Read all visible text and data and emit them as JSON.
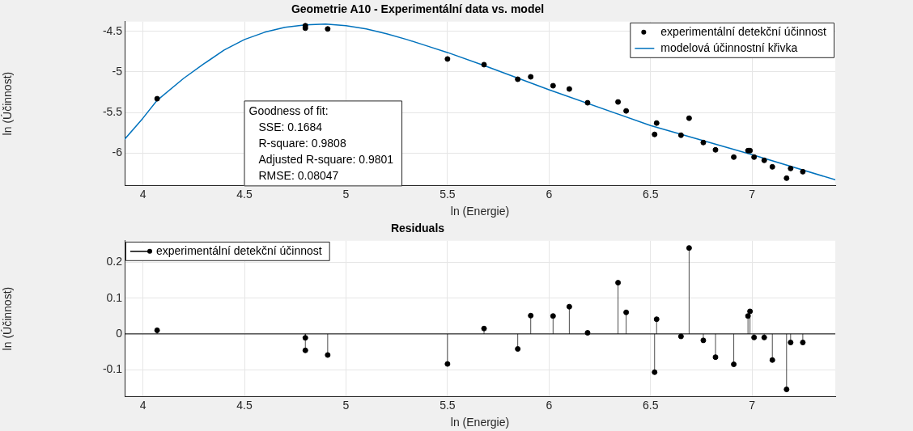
{
  "chart_data": [
    {
      "type": "scatter",
      "title": "Geometrie A10 - Experimentální data vs. model",
      "xlabel": "ln (Energie)",
      "ylabel": "ln (Účinnost)",
      "xlim": [
        3.91,
        7.41
      ],
      "xticks": [
        4,
        4.5,
        5,
        5.5,
        6,
        6.5,
        7
      ],
      "ylim": [
        -6.4,
        -4.38
      ],
      "yticks": [
        -6,
        -5.5,
        -5,
        -4.5
      ],
      "grid": true,
      "legend": "top right",
      "series": [
        {
          "name": "experimentální detekční účinnost",
          "marker": "circle",
          "color": "#000000",
          "x": [
            4.07,
            4.8,
            4.8,
            4.91,
            5.5,
            5.68,
            5.846,
            5.91,
            6.02,
            6.1,
            6.19,
            6.34,
            6.38,
            6.52,
            6.53,
            6.65,
            6.69,
            6.76,
            6.82,
            6.91,
            6.98,
            6.99,
            7.01,
            7.06,
            7.1,
            7.17,
            7.19,
            7.25
          ],
          "values": [
            -5.33,
            -4.43,
            -4.46,
            -4.47,
            -4.84,
            -4.91,
            -5.09,
            -5.06,
            -5.17,
            -5.21,
            -5.38,
            -5.37,
            -5.48,
            -5.77,
            -5.63,
            -5.78,
            -5.57,
            -5.87,
            -5.96,
            -6.05,
            -5.97,
            -5.97,
            -6.05,
            -6.09,
            -6.17,
            -6.31,
            -6.19,
            -6.23
          ]
        },
        {
          "name": "modelová účinnostní křivka",
          "type": "line",
          "marker": "none",
          "color": "#0072bd",
          "x": [
            3.91,
            4.0,
            4.07,
            4.2,
            4.3,
            4.4,
            4.5,
            4.6,
            4.7,
            4.8,
            4.9,
            5.0,
            5.1,
            5.2,
            5.3,
            5.4,
            5.5,
            5.68,
            6.0,
            6.5,
            7.0,
            7.41
          ],
          "values": [
            -5.83,
            -5.57,
            -5.35,
            -5.08,
            -4.9,
            -4.73,
            -4.6,
            -4.51,
            -4.45,
            -4.42,
            -4.41,
            -4.43,
            -4.47,
            -4.53,
            -4.6,
            -4.68,
            -4.76,
            -4.92,
            -5.22,
            -5.66,
            -6.02,
            -6.33
          ]
        }
      ],
      "annotations": [
        "Goodness of fit:",
        "SSE: 0.1684",
        "R-square: 0.9808",
        "Adjusted R-square: 0.9801",
        "RMSE: 0.08047"
      ]
    },
    {
      "type": "lollipop",
      "title": "Residuals",
      "xlabel": "ln (Energie)",
      "ylabel": "ln (Účinnost)",
      "xlim": [
        3.91,
        7.41
      ],
      "xticks": [
        4,
        4.5,
        5,
        5.5,
        6,
        6.5,
        7
      ],
      "ylim": [
        -0.175,
        0.26
      ],
      "yticks": [
        -0.1,
        0,
        0.1,
        0.2
      ],
      "grid": true,
      "legend": "top left",
      "marker": "circle",
      "series": [
        {
          "name": "experimentální detekční účinnost",
          "color": "#000000",
          "x": [
            4.07,
            4.8,
            4.8,
            4.91,
            5.5,
            5.68,
            5.846,
            5.91,
            6.02,
            6.1,
            6.19,
            6.34,
            6.38,
            6.52,
            6.53,
            6.65,
            6.69,
            6.76,
            6.82,
            6.91,
            6.98,
            6.99,
            7.01,
            7.06,
            7.1,
            7.17,
            7.19,
            7.25
          ],
          "values": [
            0.01,
            -0.011,
            -0.046,
            -0.059,
            -0.084,
            0.015,
            -0.042,
            0.051,
            0.05,
            0.076,
            0.003,
            0.143,
            0.06,
            -0.107,
            0.041,
            -0.007,
            0.24,
            -0.018,
            -0.065,
            -0.085,
            0.05,
            0.063,
            -0.01,
            -0.01,
            -0.073,
            -0.155,
            -0.024,
            -0.024
          ]
        }
      ],
      "ref_lines": [
        {
          "axis": "y",
          "value": 0,
          "color": "#000000"
        }
      ]
    }
  ]
}
